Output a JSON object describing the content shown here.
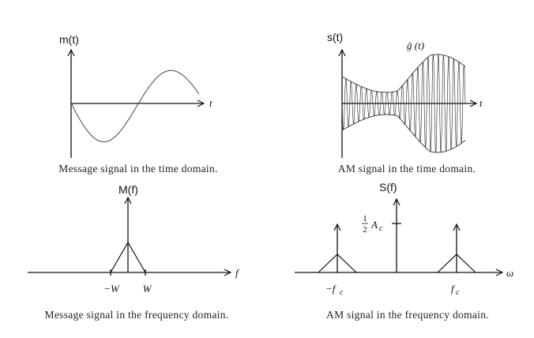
{
  "panels": {
    "time_message": {
      "y_label": "m(t)",
      "x_label": "t",
      "caption": "Message signal in the time domain."
    },
    "time_am": {
      "y_label": "s(t)",
      "x_label": "t",
      "envelope_label": "ğ (t)",
      "caption": "AM signal in the time domain."
    },
    "freq_message": {
      "y_label": "M(f)",
      "x_label": "f",
      "tick_left": "−W",
      "tick_right": "W",
      "caption": "Message signal in the frequency domain."
    },
    "freq_am": {
      "y_label": "S(f)",
      "x_label": "ω",
      "carrier_label_num": "1",
      "carrier_label_den": "2",
      "carrier_label_sym": "A",
      "carrier_label_sub": "c",
      "tick_left_sym": "−f",
      "tick_left_sub": "c",
      "tick_right_sym": "f",
      "tick_right_sub": "c",
      "caption": "AM signal in the frequency domain."
    }
  },
  "colors": {
    "ink": "#111111",
    "curve": "#444444",
    "background": "#ffffff"
  }
}
